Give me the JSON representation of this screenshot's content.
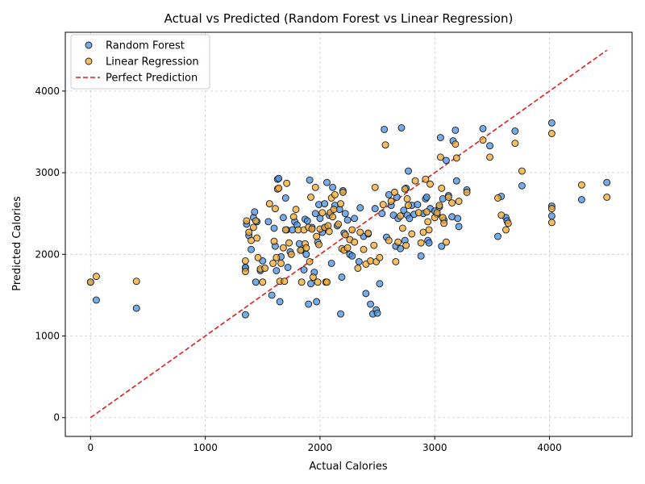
{
  "chart_data": {
    "type": "scatter",
    "title": "Actual vs Predicted (Random Forest vs Linear Regression)",
    "xlabel": "Actual Calories",
    "ylabel": "Predicted Calories",
    "xlim": [
      -220,
      4720
    ],
    "ylim": [
      -230,
      4720
    ],
    "xticks": [
      0,
      1000,
      2000,
      3000,
      4000
    ],
    "yticks": [
      0,
      1000,
      2000,
      3000,
      4000
    ],
    "grid": true,
    "legend_position": "top-left",
    "series": [
      {
        "name": "Random Forest",
        "color": "#4a90e2",
        "edge_color": "#1a1a1a",
        "points": [
          [
            0,
            1660
          ],
          [
            50,
            1440
          ],
          [
            400,
            1340
          ],
          [
            1350,
            1260
          ],
          [
            1350,
            1830
          ],
          [
            1350,
            1840
          ],
          [
            1360,
            2370
          ],
          [
            1380,
            2230
          ],
          [
            1400,
            2060
          ],
          [
            1420,
            2450
          ],
          [
            1430,
            2520
          ],
          [
            1440,
            1660
          ],
          [
            1450,
            2400
          ],
          [
            1480,
            1800
          ],
          [
            1500,
            1920
          ],
          [
            1550,
            2400
          ],
          [
            1580,
            1500
          ],
          [
            1600,
            2320
          ],
          [
            1610,
            2100
          ],
          [
            1620,
            1800
          ],
          [
            1630,
            2920
          ],
          [
            1640,
            2930
          ],
          [
            1650,
            1420
          ],
          [
            1660,
            1970
          ],
          [
            1680,
            2450
          ],
          [
            1700,
            2690
          ],
          [
            1710,
            2300
          ],
          [
            1720,
            1840
          ],
          [
            1740,
            2030
          ],
          [
            1760,
            2300
          ],
          [
            1780,
            2400
          ],
          [
            1800,
            2360
          ],
          [
            1820,
            2130
          ],
          [
            1840,
            2050
          ],
          [
            1860,
            1810
          ],
          [
            1870,
            2430
          ],
          [
            1880,
            2000
          ],
          [
            1890,
            2410
          ],
          [
            1900,
            1390
          ],
          [
            1910,
            2910
          ],
          [
            1920,
            1640
          ],
          [
            1930,
            2330
          ],
          [
            1950,
            1780
          ],
          [
            1960,
            2500
          ],
          [
            1970,
            1420
          ],
          [
            1980,
            2150
          ],
          [
            1990,
            2610
          ],
          [
            2000,
            2440
          ],
          [
            2020,
            2270
          ],
          [
            2040,
            2620
          ],
          [
            2050,
            2330
          ],
          [
            2060,
            2880
          ],
          [
            2080,
            2480
          ],
          [
            2100,
            1890
          ],
          [
            2110,
            2820
          ],
          [
            2130,
            2600
          ],
          [
            2150,
            2350
          ],
          [
            2170,
            2550
          ],
          [
            2180,
            1270
          ],
          [
            2190,
            1720
          ],
          [
            2200,
            2780
          ],
          [
            2210,
            2260
          ],
          [
            2220,
            2500
          ],
          [
            2240,
            2420
          ],
          [
            2260,
            2000
          ],
          [
            2280,
            1980
          ],
          [
            2300,
            2440
          ],
          [
            2340,
            1910
          ],
          [
            2350,
            2570
          ],
          [
            2380,
            2220
          ],
          [
            2400,
            1520
          ],
          [
            2420,
            2250
          ],
          [
            2440,
            1390
          ],
          [
            2460,
            1270
          ],
          [
            2480,
            2560
          ],
          [
            2490,
            1320
          ],
          [
            2500,
            1280
          ],
          [
            2520,
            1640
          ],
          [
            2540,
            2500
          ],
          [
            2560,
            3530
          ],
          [
            2580,
            2210
          ],
          [
            2600,
            2730
          ],
          [
            2620,
            2600
          ],
          [
            2640,
            2480
          ],
          [
            2660,
            2100
          ],
          [
            2670,
            2700
          ],
          [
            2680,
            2440
          ],
          [
            2700,
            2070
          ],
          [
            2710,
            3550
          ],
          [
            2730,
            2540
          ],
          [
            2740,
            2170
          ],
          [
            2750,
            2810
          ],
          [
            2760,
            2480
          ],
          [
            2770,
            3020
          ],
          [
            2780,
            2440
          ],
          [
            2800,
            2600
          ],
          [
            2820,
            2490
          ],
          [
            2850,
            2610
          ],
          [
            2880,
            1980
          ],
          [
            2900,
            2500
          ],
          [
            2920,
            2680
          ],
          [
            2930,
            2700
          ],
          [
            2940,
            2170
          ],
          [
            2950,
            2140
          ],
          [
            2960,
            2560
          ],
          [
            3000,
            2530
          ],
          [
            3020,
            2490
          ],
          [
            3040,
            2580
          ],
          [
            3050,
            3430
          ],
          [
            3060,
            2100
          ],
          [
            3070,
            2680
          ],
          [
            3080,
            2420
          ],
          [
            3100,
            3150
          ],
          [
            3120,
            2720
          ],
          [
            3150,
            2460
          ],
          [
            3160,
            3390
          ],
          [
            3180,
            3520
          ],
          [
            3190,
            2900
          ],
          [
            3200,
            2440
          ],
          [
            3210,
            2340
          ],
          [
            3280,
            2790
          ],
          [
            3420,
            3540
          ],
          [
            3480,
            3330
          ],
          [
            3550,
            2220
          ],
          [
            3580,
            2710
          ],
          [
            3620,
            2450
          ],
          [
            3630,
            2410
          ],
          [
            3700,
            3510
          ],
          [
            3760,
            2840
          ],
          [
            4020,
            3610
          ],
          [
            4020,
            2590
          ],
          [
            4020,
            2470
          ],
          [
            4280,
            2670
          ],
          [
            4500,
            2880
          ]
        ]
      },
      {
        "name": "Linear Regression",
        "color": "#f0a830",
        "edge_color": "#1a1a1a",
        "points": [
          [
            0,
            1660
          ],
          [
            50,
            1730
          ],
          [
            400,
            1670
          ],
          [
            1350,
            1790
          ],
          [
            1350,
            1920
          ],
          [
            1360,
            2410
          ],
          [
            1380,
            2270
          ],
          [
            1400,
            2170
          ],
          [
            1420,
            2330
          ],
          [
            1440,
            2410
          ],
          [
            1450,
            2200
          ],
          [
            1460,
            1960
          ],
          [
            1480,
            1820
          ],
          [
            1500,
            1660
          ],
          [
            1520,
            1830
          ],
          [
            1560,
            2620
          ],
          [
            1590,
            1890
          ],
          [
            1600,
            2160
          ],
          [
            1610,
            2560
          ],
          [
            1620,
            1960
          ],
          [
            1630,
            2800
          ],
          [
            1640,
            2810
          ],
          [
            1650,
            1670
          ],
          [
            1660,
            1890
          ],
          [
            1680,
            2080
          ],
          [
            1690,
            1670
          ],
          [
            1700,
            2300
          ],
          [
            1710,
            2870
          ],
          [
            1730,
            2140
          ],
          [
            1750,
            2000
          ],
          [
            1770,
            2460
          ],
          [
            1790,
            2550
          ],
          [
            1810,
            2300
          ],
          [
            1830,
            2050
          ],
          [
            1840,
            1660
          ],
          [
            1860,
            2300
          ],
          [
            1870,
            2130
          ],
          [
            1880,
            2080
          ],
          [
            1900,
            2330
          ],
          [
            1910,
            1910
          ],
          [
            1920,
            2700
          ],
          [
            1930,
            2310
          ],
          [
            1940,
            1720
          ],
          [
            1960,
            2820
          ],
          [
            1970,
            2220
          ],
          [
            1980,
            1660
          ],
          [
            1990,
            2120
          ],
          [
            2000,
            2310
          ],
          [
            2020,
            2510
          ],
          [
            2040,
            2330
          ],
          [
            2050,
            1660
          ],
          [
            2060,
            1660
          ],
          [
            2070,
            2350
          ],
          [
            2080,
            2280
          ],
          [
            2090,
            2510
          ],
          [
            2100,
            2690
          ],
          [
            2110,
            2460
          ],
          [
            2120,
            2550
          ],
          [
            2130,
            2730
          ],
          [
            2160,
            2370
          ],
          [
            2180,
            2620
          ],
          [
            2190,
            2070
          ],
          [
            2200,
            2760
          ],
          [
            2210,
            2050
          ],
          [
            2220,
            2240
          ],
          [
            2240,
            2080
          ],
          [
            2260,
            2180
          ],
          [
            2280,
            2300
          ],
          [
            2300,
            2150
          ],
          [
            2330,
            1830
          ],
          [
            2350,
            2270
          ],
          [
            2380,
            2060
          ],
          [
            2400,
            1880
          ],
          [
            2420,
            2260
          ],
          [
            2440,
            1920
          ],
          [
            2470,
            2110
          ],
          [
            2480,
            2820
          ],
          [
            2490,
            1910
          ],
          [
            2520,
            1960
          ],
          [
            2550,
            2610
          ],
          [
            2570,
            3340
          ],
          [
            2600,
            2170
          ],
          [
            2620,
            2650
          ],
          [
            2650,
            2760
          ],
          [
            2660,
            1910
          ],
          [
            2680,
            2150
          ],
          [
            2700,
            2470
          ],
          [
            2720,
            2320
          ],
          [
            2740,
            2800
          ],
          [
            2750,
            2110
          ],
          [
            2760,
            2680
          ],
          [
            2770,
            2600
          ],
          [
            2800,
            2250
          ],
          [
            2830,
            2900
          ],
          [
            2860,
            2510
          ],
          [
            2880,
            2140
          ],
          [
            2900,
            2270
          ],
          [
            2920,
            2920
          ],
          [
            2930,
            2520
          ],
          [
            2940,
            2400
          ],
          [
            2950,
            2300
          ],
          [
            2960,
            2860
          ],
          [
            3000,
            2450
          ],
          [
            3020,
            2510
          ],
          [
            3040,
            2600
          ],
          [
            3050,
            3190
          ],
          [
            3060,
            2810
          ],
          [
            3070,
            2450
          ],
          [
            3080,
            2380
          ],
          [
            3100,
            2150
          ],
          [
            3120,
            2700
          ],
          [
            3150,
            2630
          ],
          [
            3180,
            3350
          ],
          [
            3190,
            3180
          ],
          [
            3210,
            2650
          ],
          [
            3280,
            2760
          ],
          [
            3420,
            3400
          ],
          [
            3480,
            3190
          ],
          [
            3550,
            2690
          ],
          [
            3580,
            2480
          ],
          [
            3620,
            2300
          ],
          [
            3640,
            2380
          ],
          [
            3700,
            3360
          ],
          [
            3760,
            3020
          ],
          [
            4020,
            3480
          ],
          [
            4020,
            2560
          ],
          [
            4020,
            2390
          ],
          [
            4280,
            2850
          ],
          [
            4500,
            2700
          ]
        ]
      }
    ],
    "reference_line": {
      "name": "Perfect Prediction",
      "color": "#e02020",
      "x": [
        0,
        4500
      ],
      "y": [
        0,
        4500
      ]
    }
  }
}
